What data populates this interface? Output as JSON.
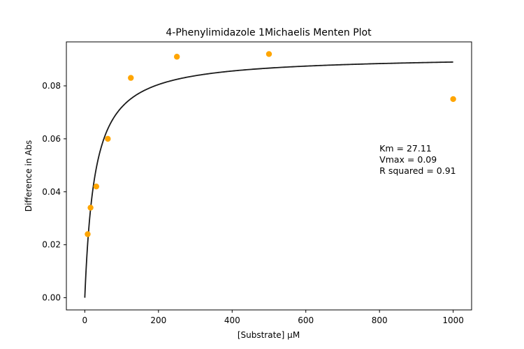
{
  "chart_data": {
    "type": "scatter",
    "title": "4-Phenylimidazole 1Michaelis Menten Plot",
    "xlabel": "[Substrate] µM",
    "ylabel": "Difference in Abs",
    "xlim": [
      -50,
      1050
    ],
    "ylim": [
      -0.0046,
      0.0966
    ],
    "x_ticks": [
      0,
      200,
      400,
      600,
      800,
      1000
    ],
    "x_tick_labels": [
      "0",
      "200",
      "400",
      "600",
      "800",
      "1000"
    ],
    "y_ticks": [
      0.0,
      0.02,
      0.04,
      0.06,
      0.08
    ],
    "y_tick_labels": [
      "0.00",
      "0.02",
      "0.04",
      "0.06",
      "0.08"
    ],
    "grid": false,
    "series": [
      {
        "kind": "points",
        "color": "#FFA500",
        "points": [
          {
            "x": 7.8,
            "y": 0.024
          },
          {
            "x": 15.6,
            "y": 0.034
          },
          {
            "x": 31.25,
            "y": 0.042
          },
          {
            "x": 62.5,
            "y": 0.06
          },
          {
            "x": 125,
            "y": 0.083
          },
          {
            "x": 250,
            "y": 0.091
          },
          {
            "x": 500,
            "y": 0.092
          },
          {
            "x": 1000,
            "y": 0.075
          }
        ]
      },
      {
        "kind": "fit",
        "color": "#1a1a1a",
        "model": "michaelis-menten",
        "Km": 27.11,
        "Vmax": 0.0914,
        "x_range": [
          0,
          1000
        ]
      }
    ],
    "annotation": {
      "lines": [
        "Km = 27.11",
        "Vmax = 0.09",
        "R squared = 0.91"
      ],
      "x": 800,
      "y": 0.05
    }
  }
}
